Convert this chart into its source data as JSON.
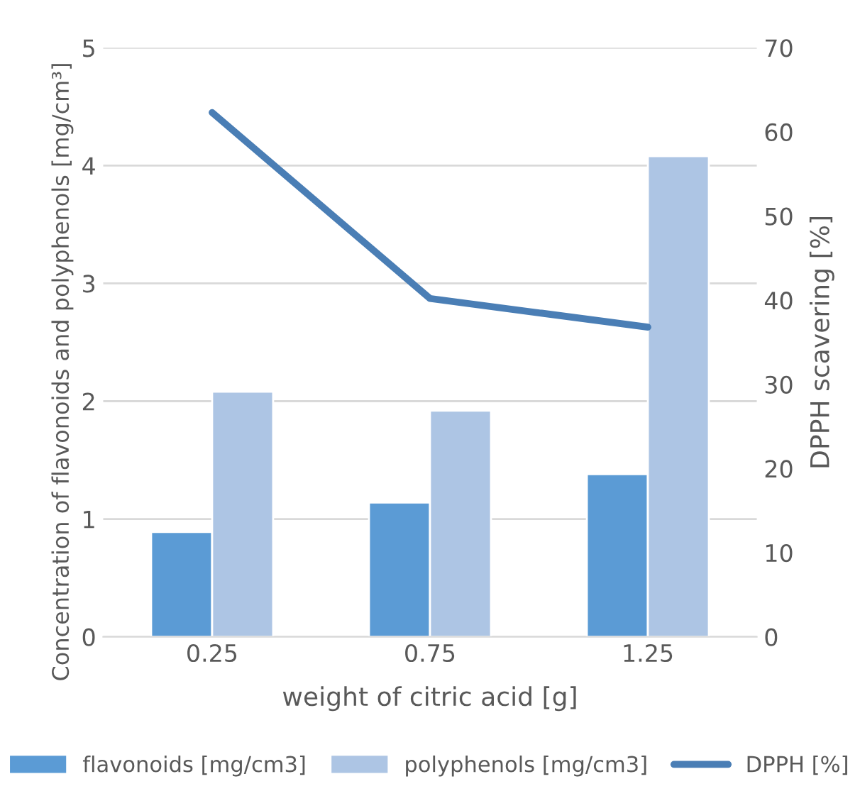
{
  "chart_data": {
    "type": "bar",
    "xlabel": "weight of citric acid [g]",
    "ylabel": "Concentration of flavonoids and polyphenols [mg/cm³]",
    "y2label": "DPPH scavering [%]",
    "categories": [
      "0.25",
      "0.75",
      "1.25"
    ],
    "series": [
      {
        "name": "flavonoids [mg/cm3]",
        "color": "#5b9bd5",
        "values": [
          0.89,
          1.14,
          1.38
        ]
      },
      {
        "name": "polyphenols [mg/cm3]",
        "color": "#adc5e4",
        "values": [
          2.08,
          1.92,
          4.08
        ]
      },
      {
        "name": "DPPH [%]",
        "type": "line",
        "axis": "y2",
        "color": "#4a7eb5",
        "values": [
          62.3,
          40.2,
          36.8
        ]
      }
    ],
    "ylim": [
      0,
      5
    ],
    "yticks": [
      0,
      1,
      2,
      3,
      4,
      5
    ],
    "y2lim": [
      0,
      70
    ],
    "y2ticks": [
      0,
      10,
      20,
      30,
      40,
      50,
      60,
      70
    ],
    "grid": "y",
    "legend": "bottom",
    "marker": "none"
  }
}
